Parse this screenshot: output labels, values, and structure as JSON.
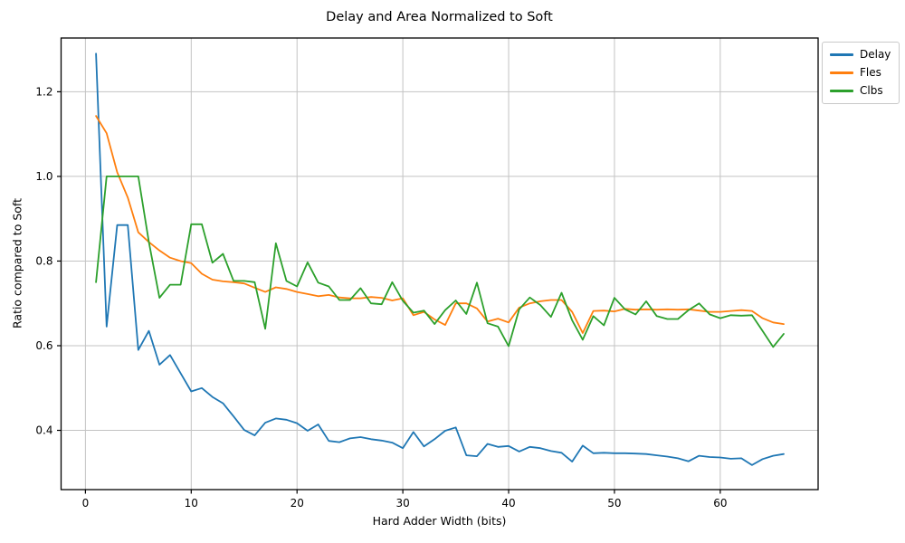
{
  "chart_data": {
    "type": "line",
    "title": "Delay and Area Normalized to Soft",
    "xlabel": "Hard Adder Width (bits)",
    "ylabel": "Ratio compared to Soft",
    "x_ticks": [
      0,
      10,
      20,
      30,
      40,
      50,
      60
    ],
    "y_ticks": [
      0.4,
      0.6,
      0.8,
      1.0,
      1.2
    ],
    "xlim": [
      -2.3,
      69.25
    ],
    "ylim": [
      0.26,
      1.327
    ],
    "grid": true,
    "legend_position": "upper right outside",
    "x": [
      1,
      2,
      3,
      4,
      5,
      6,
      7,
      8,
      9,
      10,
      11,
      12,
      13,
      14,
      15,
      16,
      17,
      18,
      19,
      20,
      21,
      22,
      23,
      24,
      25,
      26,
      27,
      28,
      29,
      30,
      31,
      32,
      33,
      34,
      35,
      36,
      37,
      38,
      39,
      40,
      41,
      42,
      43,
      44,
      45,
      46,
      47,
      48,
      49,
      50,
      51,
      52,
      53,
      54,
      55,
      56,
      57,
      58,
      59,
      60,
      61,
      62,
      63,
      64,
      65,
      66
    ],
    "series": [
      {
        "name": "Delay",
        "color": "#1f77b4",
        "values": [
          1.29,
          0.645,
          0.885,
          0.885,
          0.59,
          0.635,
          0.555,
          0.578,
          0.535,
          0.492,
          0.5,
          0.479,
          0.464,
          0.433,
          0.401,
          0.388,
          0.418,
          0.428,
          0.425,
          0.417,
          0.399,
          0.414,
          0.375,
          0.372,
          0.381,
          0.384,
          0.379,
          0.376,
          0.371,
          0.358,
          0.396,
          0.362,
          0.379,
          0.399,
          0.407,
          0.341,
          0.339,
          0.368,
          0.361,
          0.363,
          0.35,
          0.361,
          0.358,
          0.351,
          0.347,
          0.326,
          0.364,
          0.346,
          0.347,
          0.346,
          0.346,
          0.345,
          0.344,
          0.341,
          0.338,
          0.334,
          0.327,
          0.34,
          0.337,
          0.336,
          0.333,
          0.334,
          0.318,
          0.332,
          0.34,
          0.344
        ]
      },
      {
        "name": "Fles",
        "color": "#ff7f0e",
        "values": [
          1.143,
          1.102,
          1.01,
          0.95,
          0.868,
          0.845,
          0.825,
          0.808,
          0.8,
          0.795,
          0.77,
          0.756,
          0.752,
          0.75,
          0.747,
          0.737,
          0.727,
          0.738,
          0.734,
          0.727,
          0.722,
          0.717,
          0.72,
          0.714,
          0.712,
          0.712,
          0.715,
          0.713,
          0.707,
          0.712,
          0.672,
          0.68,
          0.662,
          0.649,
          0.7,
          0.7,
          0.688,
          0.657,
          0.664,
          0.655,
          0.69,
          0.7,
          0.705,
          0.708,
          0.708,
          0.68,
          0.63,
          0.682,
          0.683,
          0.681,
          0.687,
          0.685,
          0.686,
          0.685,
          0.686,
          0.685,
          0.686,
          0.683,
          0.68,
          0.68,
          0.682,
          0.684,
          0.682,
          0.665,
          0.655,
          0.651
        ]
      },
      {
        "name": "Clbs",
        "color": "#2ca02c",
        "values": [
          0.75,
          1.0,
          1.0,
          1.0,
          1.0,
          0.845,
          0.713,
          0.744,
          0.744,
          0.887,
          0.887,
          0.796,
          0.817,
          0.753,
          0.753,
          0.75,
          0.64,
          0.842,
          0.753,
          0.74,
          0.797,
          0.749,
          0.74,
          0.708,
          0.708,
          0.736,
          0.7,
          0.698,
          0.75,
          0.706,
          0.678,
          0.683,
          0.651,
          0.684,
          0.707,
          0.675,
          0.749,
          0.653,
          0.645,
          0.599,
          0.686,
          0.714,
          0.696,
          0.668,
          0.725,
          0.66,
          0.614,
          0.67,
          0.648,
          0.713,
          0.686,
          0.674,
          0.705,
          0.67,
          0.663,
          0.663,
          0.684,
          0.7,
          0.674,
          0.665,
          0.672,
          0.671,
          0.672,
          0.635,
          0.597,
          0.628
        ]
      }
    ],
    "style": {
      "grid_color": "#c3c3c3",
      "spine_color": "#000000",
      "background": "#ffffff",
      "line_width": 1.8
    }
  }
}
